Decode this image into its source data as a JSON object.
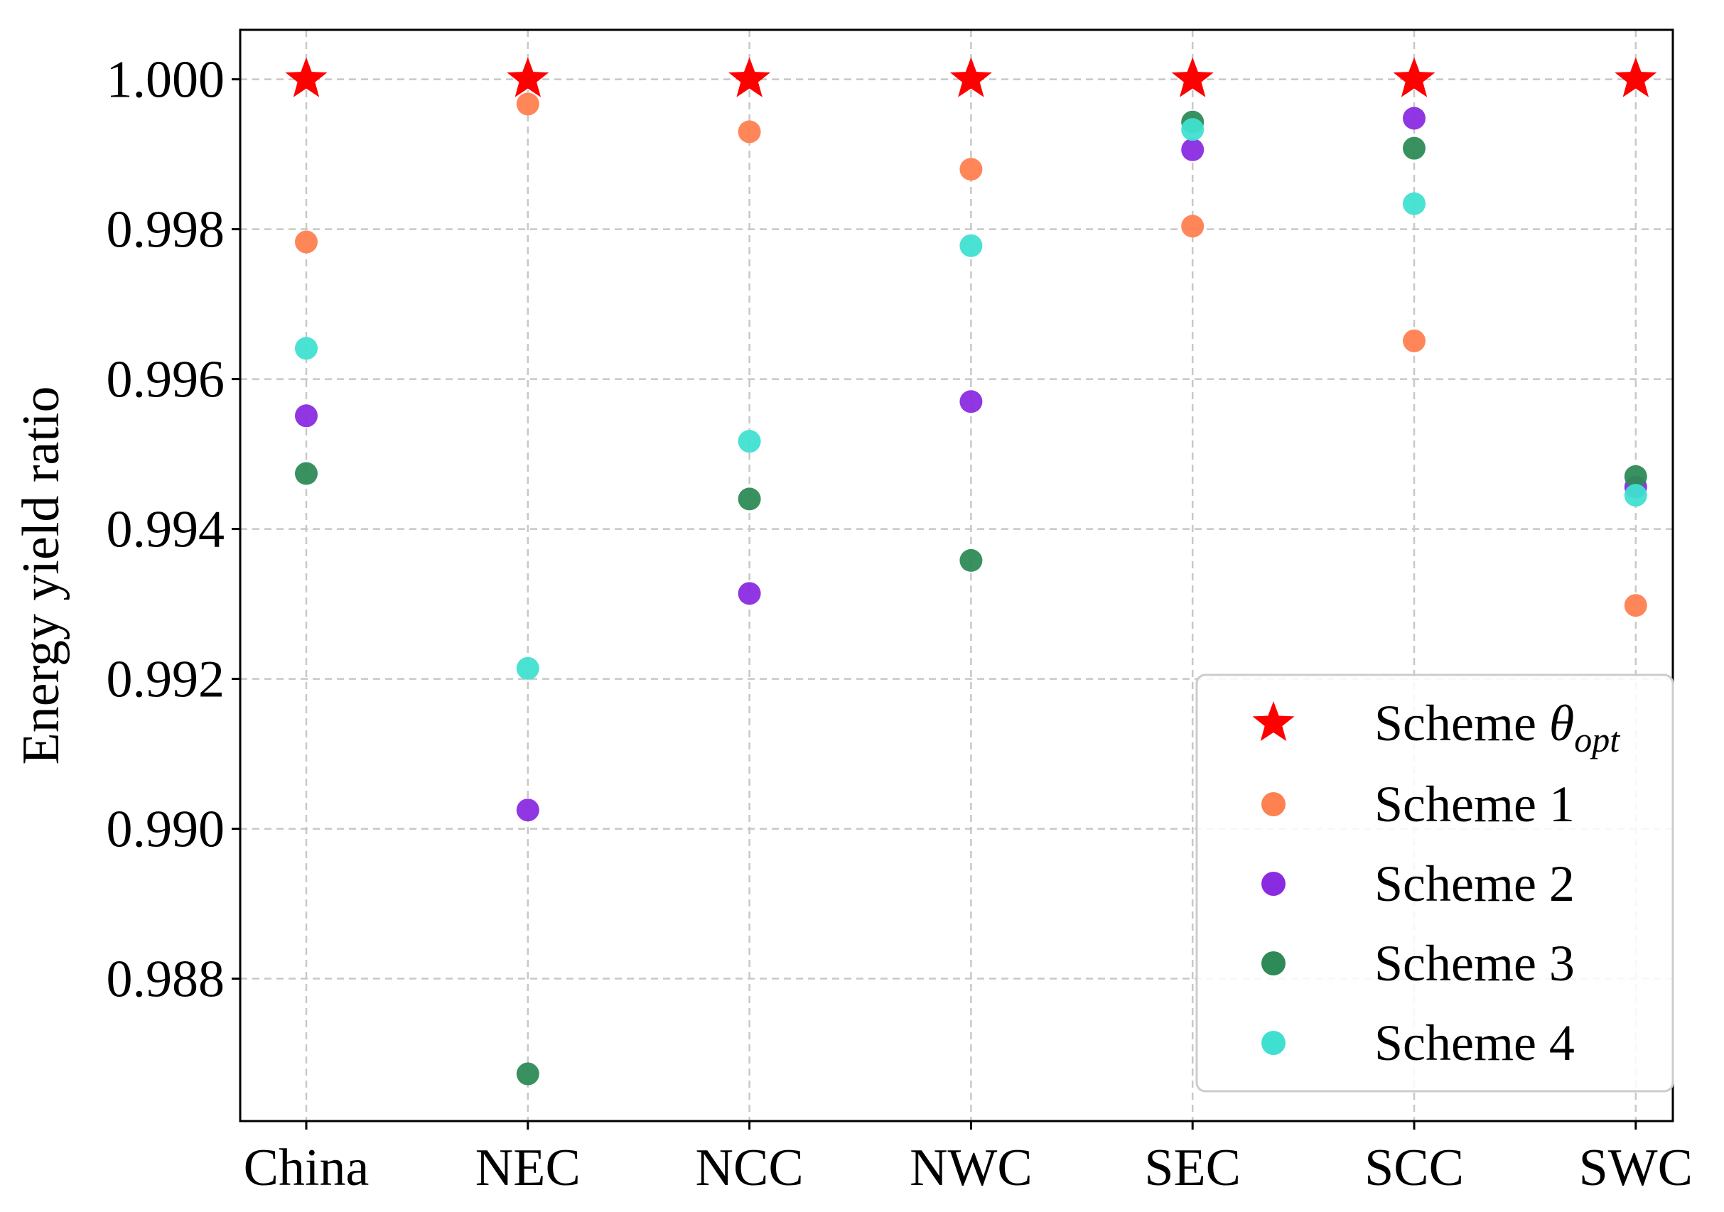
{
  "chart_data": {
    "type": "scatter",
    "title": "",
    "xlabel": "",
    "ylabel": "Energy yield ratio",
    "categories": [
      "China",
      "NEC",
      "NCC",
      "NWC",
      "SEC",
      "SCC",
      "SWC"
    ],
    "ylim": [
      0.9861,
      1.00066
    ],
    "yticks": [
      0.988,
      0.99,
      0.992,
      0.994,
      0.996,
      0.998,
      1.0
    ],
    "ytick_labels": [
      "0.988",
      "0.990",
      "0.992",
      "0.994",
      "0.996",
      "0.998",
      "1.000"
    ],
    "grid": true,
    "legend_position": "lower-right",
    "series": [
      {
        "name": "Scheme θopt",
        "label_base": "Scheme ",
        "label_symbol": "θ",
        "label_sub": "opt",
        "marker": "star",
        "color": "#ff0000",
        "values": [
          1.0,
          1.0,
          1.0,
          1.0,
          1.0,
          1.0,
          1.0
        ]
      },
      {
        "name": "Scheme 1",
        "label_base": "Scheme 1",
        "marker": "circle",
        "color": "#ff8050",
        "values": [
          0.99783,
          0.99967,
          0.9993,
          0.9988,
          0.99804,
          0.99651,
          0.99298
        ]
      },
      {
        "name": "Scheme 2",
        "label_base": "Scheme 2",
        "marker": "circle",
        "color": "#8a2be2",
        "values": [
          0.99551,
          0.99025,
          0.99314,
          0.9957,
          0.99906,
          0.99948,
          0.99456
        ]
      },
      {
        "name": "Scheme 3",
        "label_base": "Scheme 3",
        "marker": "circle",
        "color": "#2e8b57",
        "values": [
          0.99474,
          0.98673,
          0.9944,
          0.99358,
          0.99943,
          0.99908,
          0.9947
        ]
      },
      {
        "name": "Scheme 4",
        "label_base": "Scheme 4",
        "marker": "circle",
        "color": "#40e0d0",
        "values": [
          0.99641,
          0.99214,
          0.99517,
          0.99778,
          0.99933,
          0.99834,
          0.99445
        ]
      }
    ]
  }
}
